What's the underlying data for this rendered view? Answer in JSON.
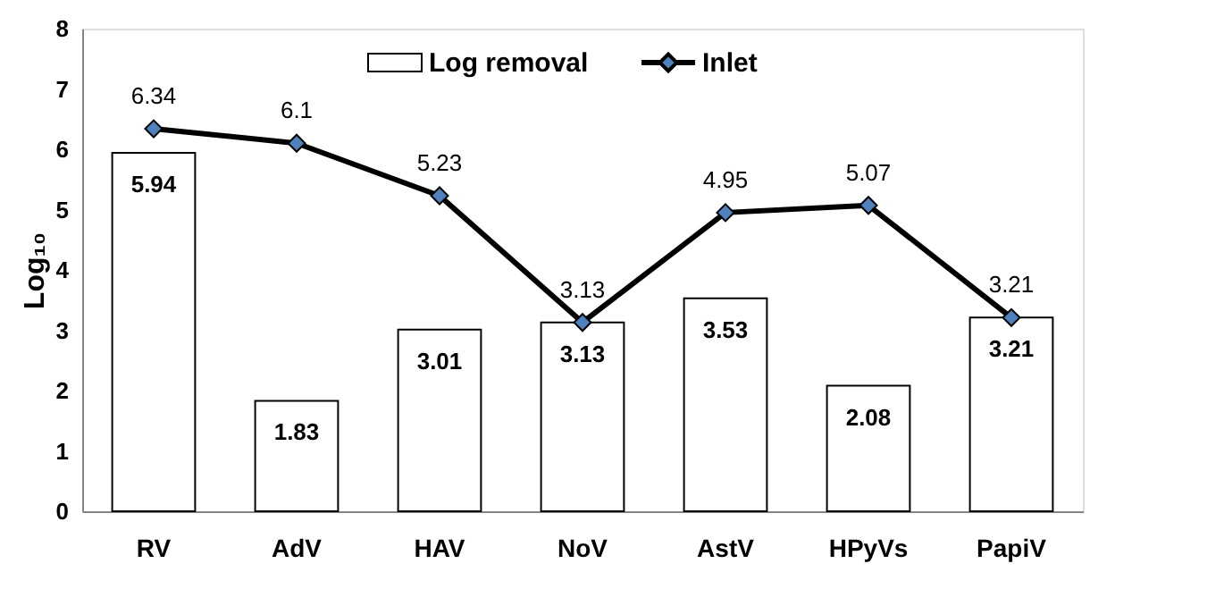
{
  "chart_data": {
    "type": "bar",
    "ylabel": "Log₁₀",
    "categories": [
      "RV",
      "AdV",
      "HAV",
      "NoV",
      "AstV",
      "HPyVs",
      "PapiV"
    ],
    "series": [
      {
        "name": "Log removal",
        "type": "bar",
        "color": "#ffffff",
        "values": [
          5.94,
          1.83,
          3.01,
          3.13,
          3.53,
          2.08,
          3.21
        ]
      },
      {
        "name": "Inlet",
        "type": "line",
        "color": "#000000",
        "marker": "diamond",
        "values": [
          6.34,
          6.1,
          5.23,
          3.13,
          4.95,
          5.07,
          3.21
        ]
      }
    ],
    "ylim": [
      0,
      8
    ],
    "yticks": [
      0,
      1,
      2,
      3,
      4,
      5,
      6,
      7,
      8
    ],
    "grid": false,
    "legend": "top",
    "data_labels": true
  }
}
